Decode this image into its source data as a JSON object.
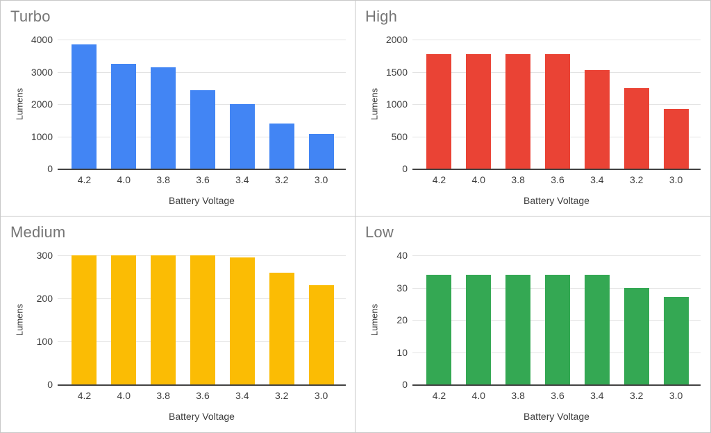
{
  "theme": {
    "background": "#ffffff",
    "panel_border_color": "#c8c8c8",
    "grid_color": "#e3e3e3",
    "axis_color": "#424242",
    "title_color": "#757575",
    "tick_color": "#3c3c3c"
  },
  "chart_data": [
    {
      "type": "bar",
      "title": "Turbo",
      "color": "#4285F4",
      "categories": [
        "4.2",
        "4.0",
        "3.8",
        "3.6",
        "3.4",
        "3.2",
        "3.0"
      ],
      "values": [
        3850,
        3250,
        3140,
        2430,
        2000,
        1390,
        1080
      ],
      "xlabel": "Battery Voltage",
      "ylabel": "Lumens",
      "ylim": [
        0,
        4000
      ],
      "yticks": [
        0,
        1000,
        2000,
        3000,
        4000
      ],
      "grid": true,
      "legend": "none"
    },
    {
      "type": "bar",
      "title": "High",
      "color": "#EA4335",
      "categories": [
        "4.2",
        "4.0",
        "3.8",
        "3.6",
        "3.4",
        "3.2",
        "3.0"
      ],
      "values": [
        1770,
        1770,
        1770,
        1770,
        1530,
        1250,
        930
      ],
      "xlabel": "Battery Voltage",
      "ylabel": "Lumens",
      "ylim": [
        0,
        2000
      ],
      "yticks": [
        0,
        500,
        1000,
        1500,
        2000
      ],
      "grid": true,
      "legend": "none"
    },
    {
      "type": "bar",
      "title": "Medium",
      "color": "#FBBC04",
      "categories": [
        "4.2",
        "4.0",
        "3.8",
        "3.6",
        "3.4",
        "3.2",
        "3.0"
      ],
      "values": [
        300,
        300,
        300,
        300,
        295,
        260,
        230
      ],
      "xlabel": "Battery Voltage",
      "ylabel": "Lumens",
      "ylim": [
        0,
        300
      ],
      "yticks": [
        0,
        100,
        200,
        300
      ],
      "grid": true,
      "legend": "none"
    },
    {
      "type": "bar",
      "title": "Low",
      "color": "#34A853",
      "categories": [
        "4.2",
        "4.0",
        "3.8",
        "3.6",
        "3.4",
        "3.2",
        "3.0"
      ],
      "values": [
        34,
        34,
        34,
        34,
        34,
        30,
        27
      ],
      "xlabel": "Battery Voltage",
      "ylabel": "Lumens",
      "ylim": [
        0,
        40
      ],
      "yticks": [
        0,
        10,
        20,
        30,
        40
      ],
      "grid": true,
      "legend": "none"
    }
  ]
}
